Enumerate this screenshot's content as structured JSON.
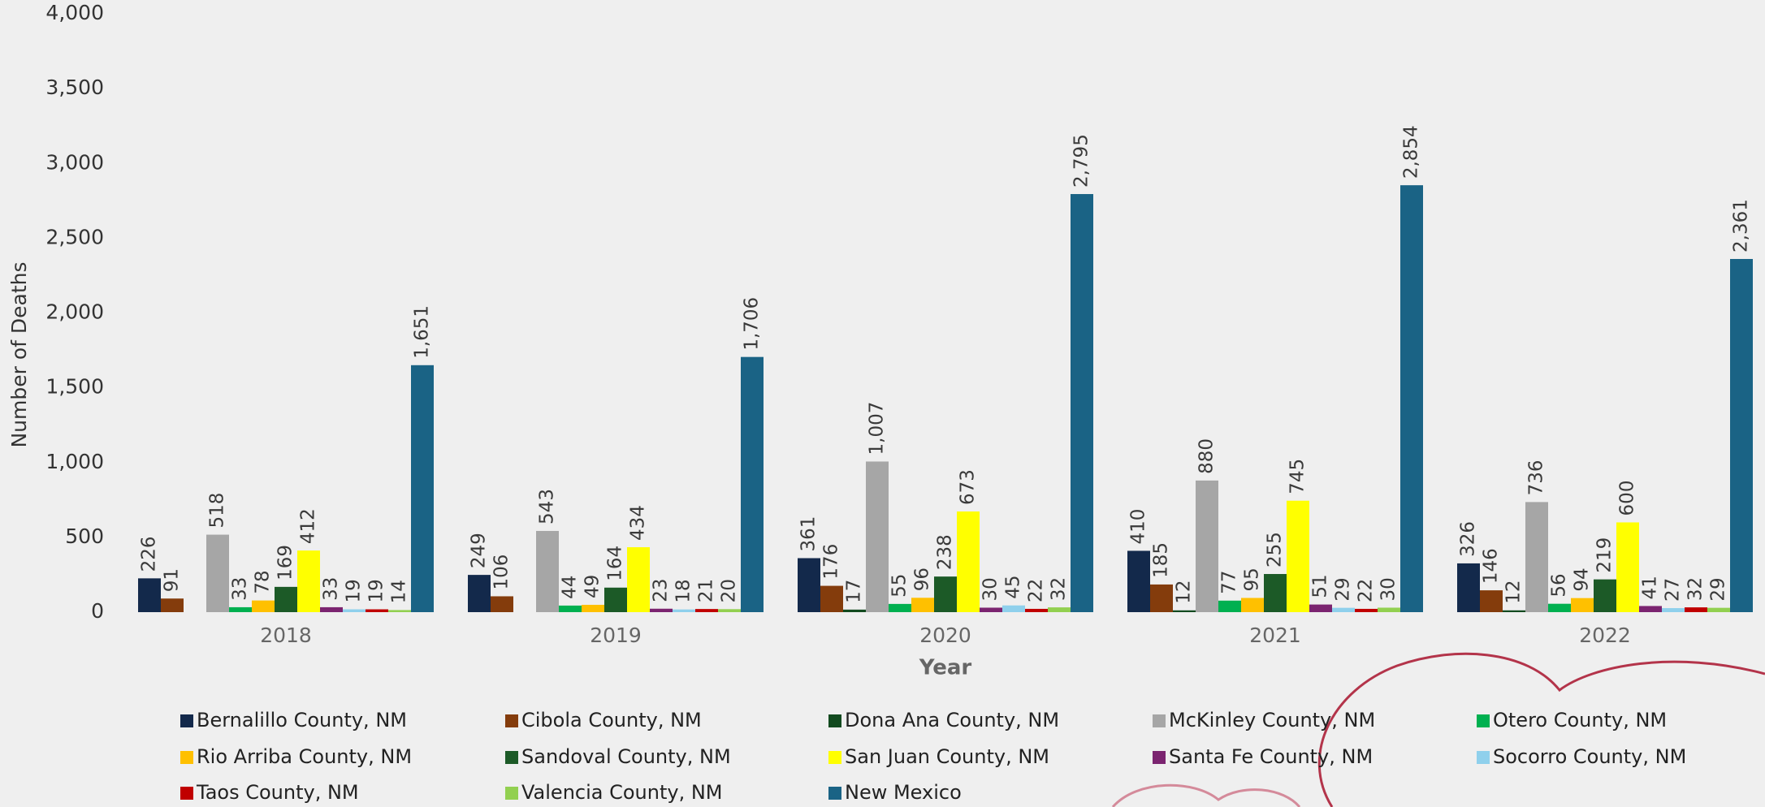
{
  "chart_data": {
    "type": "bar",
    "x_label": "Year",
    "y_label": "Number of Deaths",
    "categories": [
      "2018",
      "2019",
      "2020",
      "2021",
      "2022"
    ],
    "ylim": [
      0,
      4000
    ],
    "yticks": [
      0,
      500,
      {
        "value": 1000,
        "label": "1,000"
      },
      {
        "value": 1500,
        "label": "1,500"
      },
      {
        "value": 2000,
        "label": "2,000"
      },
      {
        "value": 2500,
        "label": "2,500"
      },
      {
        "value": 3000,
        "label": "3,000"
      },
      {
        "value": 3500,
        "label": "3,500"
      },
      {
        "value": 4000,
        "label": "4,000"
      }
    ],
    "series": [
      {
        "name": "Bernalillo County, NM",
        "color": "#13294b",
        "values": [
          226,
          249,
          361,
          410,
          326
        ]
      },
      {
        "name": "Cibola County, NM",
        "color": "#843c0c",
        "values": [
          91,
          106,
          176,
          185,
          146
        ]
      },
      {
        "name": "Dona Ana County, NM",
        "color": "#124a1f",
        "values": [
          null,
          null,
          17,
          12,
          12
        ]
      },
      {
        "name": "McKinley County, NM",
        "color": "#a6a6a6",
        "values": [
          518,
          543,
          1007,
          880,
          736
        ],
        "value_labels": [
          "518",
          "543",
          "1,007",
          "880",
          "736"
        ]
      },
      {
        "name": "Otero County, NM",
        "color": "#00b050",
        "values": [
          33,
          44,
          55,
          77,
          56
        ]
      },
      {
        "name": "Rio Arriba County, NM",
        "color": "#ffc000",
        "values": [
          78,
          49,
          96,
          95,
          94
        ]
      },
      {
        "name": "Sandoval County, NM",
        "color": "#1c5a27",
        "values": [
          169,
          164,
          238,
          255,
          219
        ]
      },
      {
        "name": "San Juan County, NM",
        "color": "#ffff00",
        "values": [
          412,
          434,
          673,
          745,
          600
        ]
      },
      {
        "name": "Santa Fe County, NM",
        "color": "#7b2470",
        "values": [
          33,
          23,
          30,
          51,
          41
        ]
      },
      {
        "name": "Socorro County, NM",
        "color": "#8fd0ec",
        "values": [
          19,
          18,
          45,
          29,
          27
        ]
      },
      {
        "name": "Taos County, NM",
        "color": "#c00000",
        "values": [
          19,
          21,
          22,
          22,
          32
        ]
      },
      {
        "name": "Valencia County, NM",
        "color": "#92d050",
        "values": [
          14,
          20,
          32,
          30,
          29
        ]
      },
      {
        "name": "New Mexico",
        "color": "#1a6385",
        "values": [
          1651,
          1706,
          2795,
          2854,
          2361
        ],
        "value_labels": [
          "1,651",
          "1,706",
          "2,795",
          "2,854",
          "2,361"
        ]
      }
    ]
  }
}
